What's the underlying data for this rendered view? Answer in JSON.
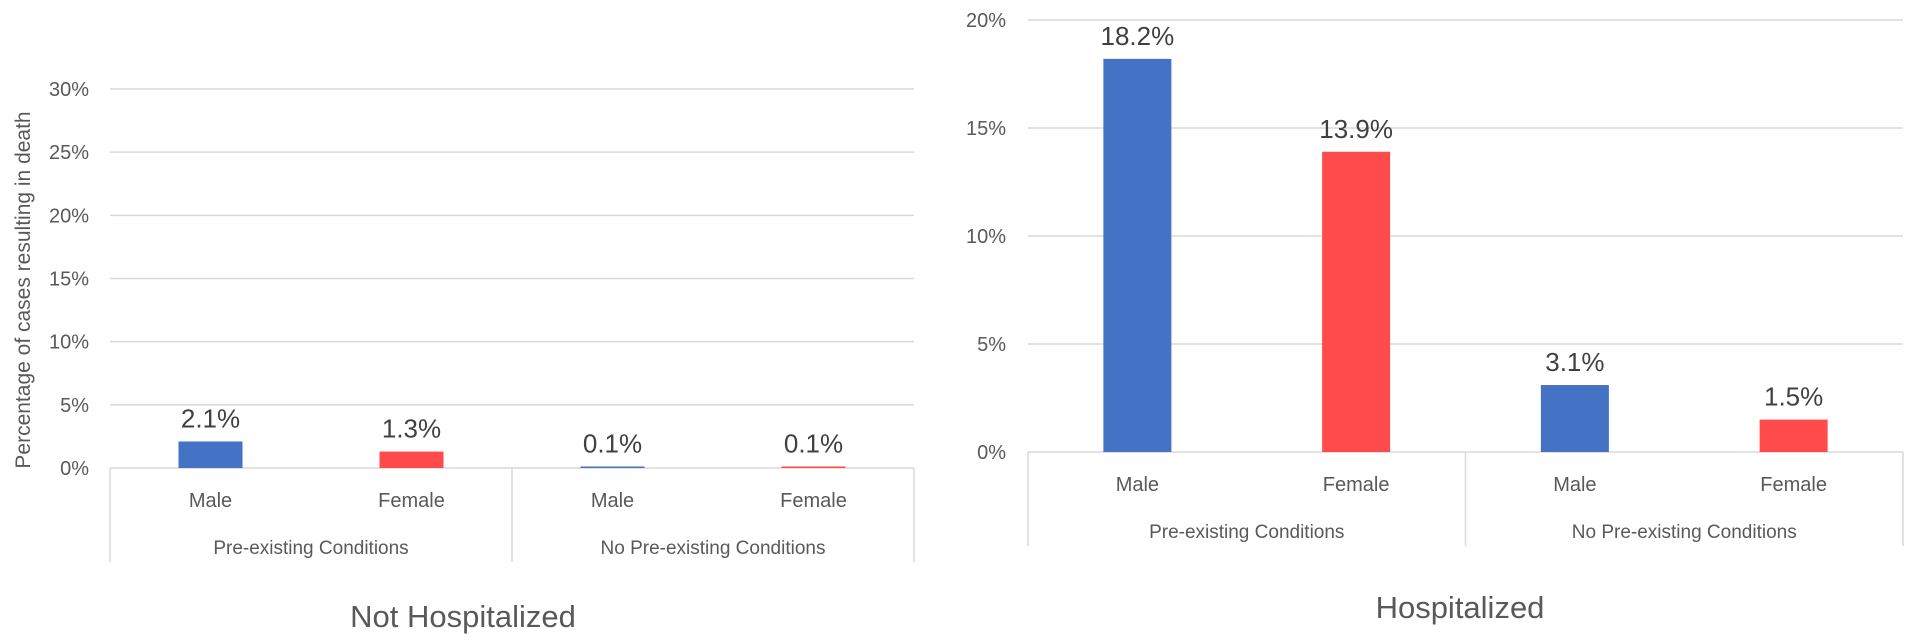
{
  "chart_data": [
    {
      "type": "bar",
      "title": "Not Hospitalized",
      "ylabel": "Percentage of cases resulting in death",
      "ylim": [
        0,
        30
      ],
      "yticks": [
        "0%",
        "5%",
        "10%",
        "15%",
        "20%",
        "25%",
        "30%"
      ],
      "categories": [
        "Male",
        "Female",
        "Male",
        "Female"
      ],
      "groups": [
        "Pre-existing Conditions",
        "No Pre-existing Conditions"
      ],
      "values": [
        2.1,
        1.3,
        0.1,
        0.1
      ],
      "labels": [
        "2.1%",
        "1.3%",
        "0.1%",
        "0.1%"
      ],
      "bar_colors": [
        "#4472c4",
        "#ff4b4b",
        "#4472c4",
        "#ff4b4b"
      ]
    },
    {
      "type": "bar",
      "title": "Hospitalized",
      "ylabel": "",
      "ylim": [
        0,
        20
      ],
      "yticks": [
        "0%",
        "5%",
        "10%",
        "15%",
        "20%"
      ],
      "categories": [
        "Male",
        "Female",
        "Male",
        "Female"
      ],
      "groups": [
        "Pre-existing Conditions",
        "No Pre-existing Conditions"
      ],
      "values": [
        18.2,
        13.9,
        3.1,
        1.5
      ],
      "labels": [
        "18.2%",
        "13.9%",
        "3.1%",
        "1.5%"
      ],
      "bar_colors": [
        "#4472c4",
        "#ff4b4b",
        "#4472c4",
        "#ff4b4b"
      ]
    }
  ]
}
